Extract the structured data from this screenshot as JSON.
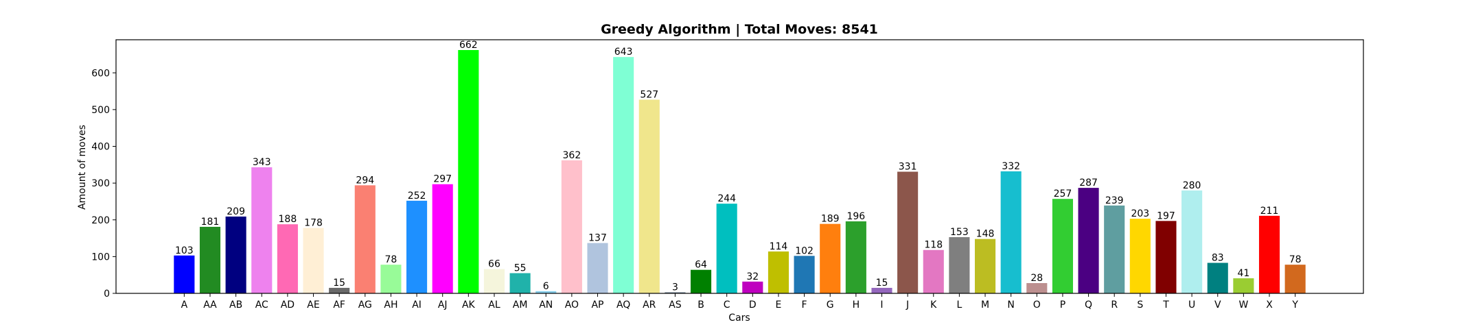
{
  "chart_data": {
    "type": "bar",
    "title": "Greedy Algorithm | Total Moves: 8541",
    "xlabel": "Cars",
    "ylabel": "Amount of moves",
    "ylim": [
      0,
      690
    ],
    "yticks": [
      0,
      100,
      200,
      300,
      400,
      500,
      600
    ],
    "grid": false,
    "categories": [
      "A",
      "AA",
      "AB",
      "AC",
      "AD",
      "AE",
      "AF",
      "AG",
      "AH",
      "AI",
      "AJ",
      "AK",
      "AL",
      "AM",
      "AN",
      "AO",
      "AP",
      "AQ",
      "AR",
      "AS",
      "B",
      "C",
      "D",
      "E",
      "F",
      "G",
      "H",
      "I",
      "J",
      "K",
      "L",
      "M",
      "N",
      "O",
      "P",
      "Q",
      "R",
      "S",
      "T",
      "U",
      "V",
      "W",
      "X",
      "Y"
    ],
    "values": [
      103,
      181,
      209,
      343,
      188,
      178,
      15,
      294,
      78,
      252,
      297,
      662,
      66,
      55,
      6,
      362,
      137,
      643,
      527,
      3,
      64,
      244,
      32,
      114,
      102,
      189,
      196,
      15,
      331,
      118,
      153,
      148,
      332,
      28,
      257,
      287,
      239,
      203,
      197,
      280,
      83,
      41,
      211,
      78
    ],
    "colors": [
      "#0000ff",
      "#228b22",
      "#000080",
      "#ee82ee",
      "#ff69b4",
      "#ffefd5",
      "#696969",
      "#fa8072",
      "#98fb98",
      "#1e90ff",
      "#ff00ff",
      "#00ff00",
      "#f5f5dc",
      "#20b2aa",
      "#87ceeb",
      "#ffc0cb",
      "#b0c4de",
      "#7fffd4",
      "#f0e68c",
      "#708090",
      "#008000",
      "#00bfbf",
      "#bf00bf",
      "#bfbf00",
      "#1f77b4",
      "#ff7f0e",
      "#2ca02c",
      "#9467bd",
      "#8c564b",
      "#e377c2",
      "#7f7f7f",
      "#bcbd22",
      "#17becf",
      "#bc8f8f",
      "#32cd32",
      "#4b0082",
      "#5f9ea0",
      "#ffd700",
      "#800000",
      "#afeeee",
      "#008080",
      "#9acd32",
      "#ff0000",
      "#d2691e"
    ]
  }
}
